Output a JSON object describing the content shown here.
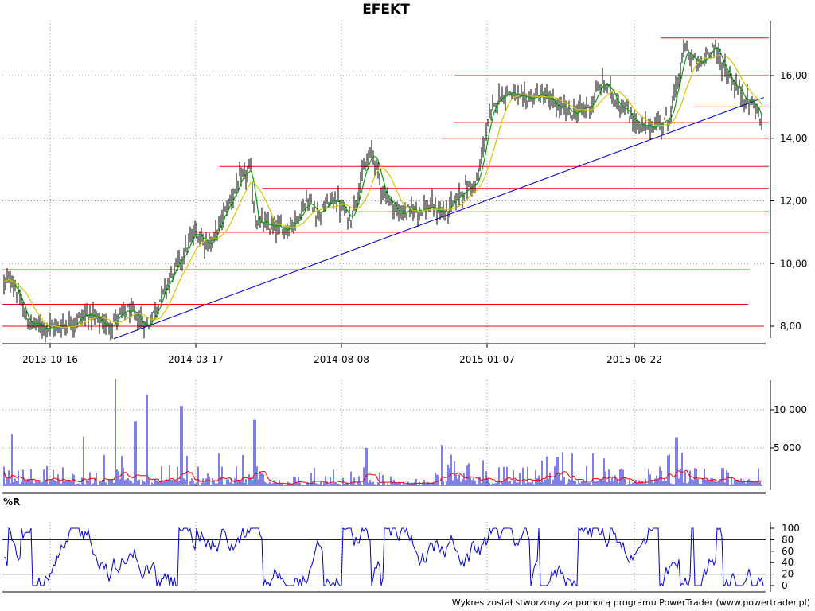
{
  "chart_data": [
    {
      "type": "candlestick",
      "title": "EFEKT",
      "x_tick_labels": [
        "2013-10-16",
        "2014-03-17",
        "2014-08-08",
        "2015-01-07",
        "2015-06-22"
      ],
      "y_tick_labels": [
        "8,00",
        "10,00",
        "12,00",
        "14,00",
        "16,00"
      ],
      "ylim": [
        7.5,
        17.5
      ],
      "grid": true,
      "price_path": [
        [
          0,
          9.3
        ],
        [
          15,
          9.5
        ],
        [
          35,
          8.1
        ],
        [
          55,
          8.0
        ],
        [
          70,
          7.95
        ],
        [
          90,
          8.1
        ],
        [
          110,
          8.4
        ],
        [
          135,
          8.0
        ],
        [
          160,
          8.5
        ],
        [
          185,
          8.0
        ],
        [
          200,
          8.8
        ],
        [
          215,
          9.6
        ],
        [
          230,
          10.3
        ],
        [
          245,
          11.0
        ],
        [
          265,
          10.6
        ],
        [
          285,
          11.8
        ],
        [
          300,
          12.6
        ],
        [
          315,
          13.0
        ],
        [
          320,
          11.4
        ],
        [
          335,
          11.2
        ],
        [
          355,
          11.1
        ],
        [
          370,
          11.3
        ],
        [
          385,
          12.0
        ],
        [
          400,
          11.6
        ],
        [
          420,
          12.1
        ],
        [
          440,
          11.4
        ],
        [
          455,
          12.8
        ],
        [
          468,
          13.6
        ],
        [
          480,
          12.4
        ],
        [
          500,
          11.6
        ],
        [
          520,
          11.7
        ],
        [
          540,
          11.8
        ],
        [
          560,
          11.6
        ],
        [
          580,
          12.3
        ],
        [
          600,
          12.6
        ],
        [
          612,
          14.4
        ],
        [
          625,
          15.3
        ],
        [
          640,
          15.5
        ],
        [
          655,
          15.2
        ],
        [
          680,
          15.4
        ],
        [
          700,
          15.0
        ],
        [
          720,
          14.8
        ],
        [
          740,
          15.0
        ],
        [
          758,
          15.8
        ],
        [
          775,
          15.2
        ],
        [
          790,
          14.8
        ],
        [
          805,
          14.3
        ],
        [
          820,
          14.4
        ],
        [
          840,
          14.6
        ],
        [
          852,
          15.8
        ],
        [
          860,
          16.9
        ],
        [
          870,
          16.5
        ],
        [
          880,
          16.3
        ],
        [
          895,
          17.0
        ],
        [
          905,
          16.5
        ],
        [
          920,
          15.8
        ],
        [
          935,
          15.3
        ],
        [
          950,
          15.0
        ],
        [
          958,
          14.4
        ]
      ],
      "moving_averages": [
        {
          "name": "",
          "color": "#00a000",
          "window": 5
        },
        {
          "name": "",
          "color": "#d4c800",
          "window": 15
        }
      ],
      "horizontal_levels": [
        {
          "y": 17.2,
          "x_from": 830,
          "x_to": 966
        },
        {
          "y": 16.0,
          "x_from": 572,
          "x_to": 966
        },
        {
          "y": 15.0,
          "x_from": 872,
          "x_to": 966
        },
        {
          "y": 14.5,
          "x_from": 570,
          "x_to": 966
        },
        {
          "y": 14.0,
          "x_from": 557,
          "x_to": 966
        },
        {
          "y": 13.1,
          "x_from": 276,
          "x_to": 966
        },
        {
          "y": 12.4,
          "x_from": 330,
          "x_to": 966
        },
        {
          "y": 11.65,
          "x_from": 450,
          "x_to": 966
        },
        {
          "y": 11.0,
          "x_from": 245,
          "x_to": 966
        },
        {
          "y": 9.8,
          "x_from": 3,
          "x_to": 942
        },
        {
          "y": 8.7,
          "x_from": 3,
          "x_to": 940
        },
        {
          "y": 8.0,
          "x_from": 3,
          "x_to": 960
        }
      ],
      "trendline": {
        "x_from": 143,
        "y_from": 7.6,
        "x_to": 960,
        "y_to": 15.3,
        "color": "#0000cc"
      },
      "level_color": "#ff0000"
    },
    {
      "type": "bar",
      "y_tick_labels": [
        "5 000",
        "10 000"
      ],
      "ylim": [
        0,
        14000
      ],
      "bar_color": "#0000cc",
      "average_color": "#ff0000",
      "spikes": [
        [
          145,
          14000
        ],
        [
          185,
          12000
        ],
        [
          228,
          10500
        ],
        [
          320,
          8700
        ],
        [
          170,
          8500
        ],
        [
          15,
          6800
        ],
        [
          105,
          6500
        ],
        [
          850,
          6400
        ],
        [
          460,
          5000
        ],
        [
          555,
          5400
        ],
        [
          275,
          4300
        ],
        [
          700,
          3800
        ]
      ]
    },
    {
      "type": "line",
      "title": "%R",
      "y_tick_labels": [
        "0",
        "20",
        "40",
        "60",
        "80",
        "100"
      ],
      "ylim": [
        0,
        100
      ],
      "reference_levels": [
        20,
        80
      ],
      "line_color": "#0000cc"
    }
  ],
  "footer": "Wykres został stworzony za pomocą programu PowerTrader (www.powertrader.pl)"
}
